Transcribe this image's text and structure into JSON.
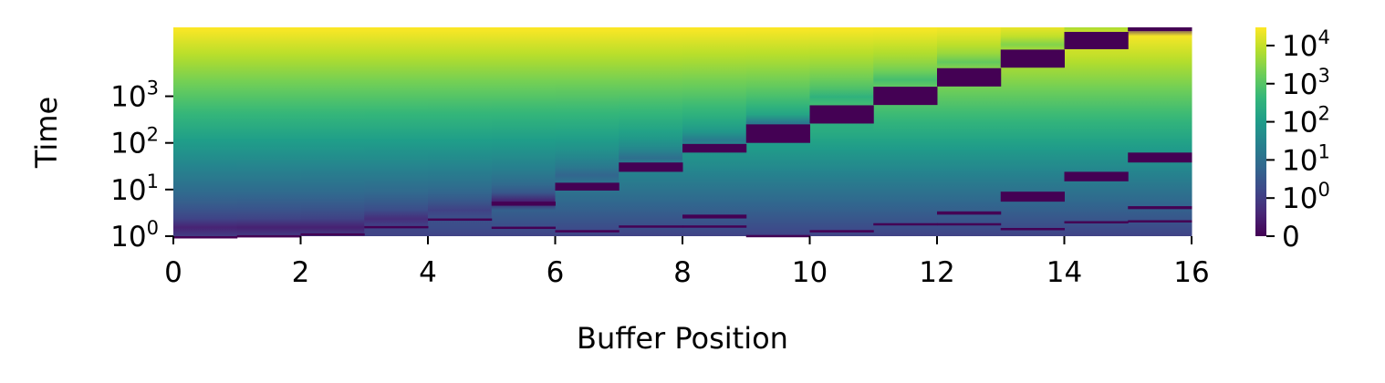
{
  "chart_data": {
    "type": "heatmap",
    "xlabel": "Buffer Position",
    "ylabel": "Time",
    "x_ticks": [
      {
        "value": 0,
        "label": "0"
      },
      {
        "value": 2,
        "label": "2"
      },
      {
        "value": 4,
        "label": "4"
      },
      {
        "value": 6,
        "label": "6"
      },
      {
        "value": 8,
        "label": "8"
      },
      {
        "value": 10,
        "label": "10"
      },
      {
        "value": 12,
        "label": "12"
      },
      {
        "value": 14,
        "label": "14"
      },
      {
        "value": 16,
        "label": "16"
      }
    ],
    "y_ticks": [
      {
        "value": 1,
        "base": "10",
        "exp": "0"
      },
      {
        "value": 10,
        "base": "10",
        "exp": "1"
      },
      {
        "value": 100,
        "base": "10",
        "exp": "2"
      },
      {
        "value": 1000,
        "base": "10",
        "exp": "3"
      }
    ],
    "y_scale": "log",
    "y_range": [
      1,
      30000
    ],
    "x_range": [
      0,
      16
    ],
    "colormap": "viridis",
    "colorbar": {
      "scale": "symlog",
      "range": [
        0,
        30000
      ],
      "ticks": [
        {
          "value": 0,
          "base": "0",
          "exp": ""
        },
        {
          "value": 1,
          "base": "10",
          "exp": "0"
        },
        {
          "value": 10,
          "base": "10",
          "exp": "1"
        },
        {
          "value": 100,
          "base": "10",
          "exp": "2"
        },
        {
          "value": 1000,
          "base": "10",
          "exp": "3"
        },
        {
          "value": 10000,
          "base": "10",
          "exp": "4"
        }
      ]
    },
    "dark_bands": [
      {
        "column": 0,
        "t_low": 1,
        "t_high": 1
      },
      {
        "column": 1,
        "t_low": 1,
        "t_high": 1.05
      },
      {
        "column": 2,
        "t_low": 1.05,
        "t_high": 1.15
      },
      {
        "column": 3,
        "t_low": 1.5,
        "t_high": 1.65
      },
      {
        "column": 4,
        "t_low": 2.2,
        "t_high": 2.4
      },
      {
        "column": 5,
        "t_low": 4.5,
        "t_high": 5.5
      },
      {
        "column": 6,
        "t_low": 9.5,
        "t_high": 14
      },
      {
        "column": 7,
        "t_low": 24,
        "t_high": 38
      },
      {
        "column": 8,
        "t_low": 62,
        "t_high": 95
      },
      {
        "column": 9,
        "t_low": 100,
        "t_high": 250
      },
      {
        "column": 10,
        "t_low": 260,
        "t_high": 640
      },
      {
        "column": 11,
        "t_low": 650,
        "t_high": 1600
      },
      {
        "column": 12,
        "t_low": 1620,
        "t_high": 4000
      },
      {
        "column": 13,
        "t_low": 4100,
        "t_high": 10000
      },
      {
        "column": 14,
        "t_low": 10200,
        "t_high": 24000
      },
      {
        "column": 15,
        "t_low": 25000,
        "t_high": 30000
      }
    ],
    "secondary_bands": [
      {
        "column": 5,
        "t_low": 1.5,
        "t_high": 1.6
      },
      {
        "column": 6,
        "t_low": 1.25,
        "t_high": 1.35
      },
      {
        "column": 7,
        "t_low": 1.6,
        "t_high": 1.7
      },
      {
        "column": 8,
        "t_low": 2.4,
        "t_high": 2.9
      },
      {
        "column": 8,
        "t_low": 1.6,
        "t_high": 1.7
      },
      {
        "column": 9,
        "t_low": 1.0,
        "t_high": 1.06
      },
      {
        "column": 10,
        "t_low": 1.25,
        "t_high": 1.35
      },
      {
        "column": 11,
        "t_low": 1.8,
        "t_high": 1.9
      },
      {
        "column": 12,
        "t_low": 2.9,
        "t_high": 3.4
      },
      {
        "column": 12,
        "t_low": 1.8,
        "t_high": 1.9
      },
      {
        "column": 13,
        "t_low": 5.5,
        "t_high": 9
      },
      {
        "column": 13,
        "t_low": 1.4,
        "t_high": 1.5
      },
      {
        "column": 14,
        "t_low": 15,
        "t_high": 24
      },
      {
        "column": 14,
        "t_low": 2.0,
        "t_high": 2.1
      },
      {
        "column": 15,
        "t_low": 38,
        "t_high": 62
      },
      {
        "column": 15,
        "t_low": 3.8,
        "t_high": 4.4
      },
      {
        "column": 15,
        "t_low": 2.1,
        "t_high": 2.2
      }
    ]
  },
  "colors": {
    "dark": "#440154",
    "viridis_stops": [
      "#440154",
      "#482878",
      "#3e4989",
      "#31688e",
      "#26828e",
      "#1f9e89",
      "#35b779",
      "#6ece58",
      "#b5de2b",
      "#fde725"
    ]
  }
}
